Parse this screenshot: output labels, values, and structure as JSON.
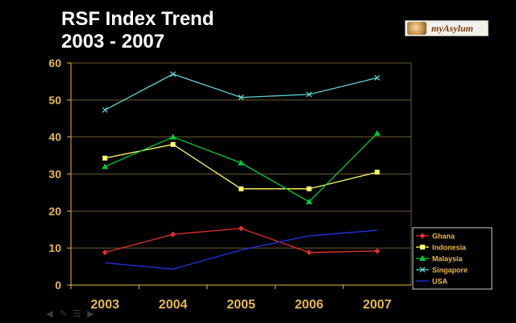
{
  "title_line1": "RSF Index Trend",
  "title_line2": "2003 - 2007",
  "logo_text": "myAsylum",
  "nav_icons": [
    "arrow-left-icon",
    "pen-icon",
    "menu-icon",
    "arrow-right-icon"
  ],
  "chart_data": {
    "type": "line",
    "categories": [
      "2003",
      "2004",
      "2005",
      "2006",
      "2007"
    ],
    "ylim": [
      0,
      60
    ],
    "yticks": [
      "0",
      "10",
      "20",
      "30",
      "40",
      "50",
      "60"
    ],
    "grid": true,
    "legend_position": "bottom-right",
    "series": [
      {
        "name": "Ghana",
        "color": "#e0302a",
        "marker": "diamond",
        "values": [
          8.8,
          13.7,
          15.3,
          8.8,
          9.2
        ]
      },
      {
        "name": "Indonesia",
        "color": "#ffff66",
        "marker": "square",
        "values": [
          34.3,
          38.0,
          26.0,
          26.0,
          30.5
        ]
      },
      {
        "name": "Malaysia",
        "color": "#00cc33",
        "marker": "triangle",
        "values": [
          32.0,
          40.0,
          33.0,
          22.5,
          41.0
        ]
      },
      {
        "name": "Singapore",
        "color": "#5fd3d3",
        "marker": "x",
        "values": [
          47.3,
          57.0,
          50.7,
          51.5,
          56.0
        ]
      },
      {
        "name": "USA",
        "color": "#1f33e0",
        "marker": "none",
        "values": [
          6.0,
          4.3,
          9.5,
          13.3,
          14.8
        ]
      }
    ]
  }
}
